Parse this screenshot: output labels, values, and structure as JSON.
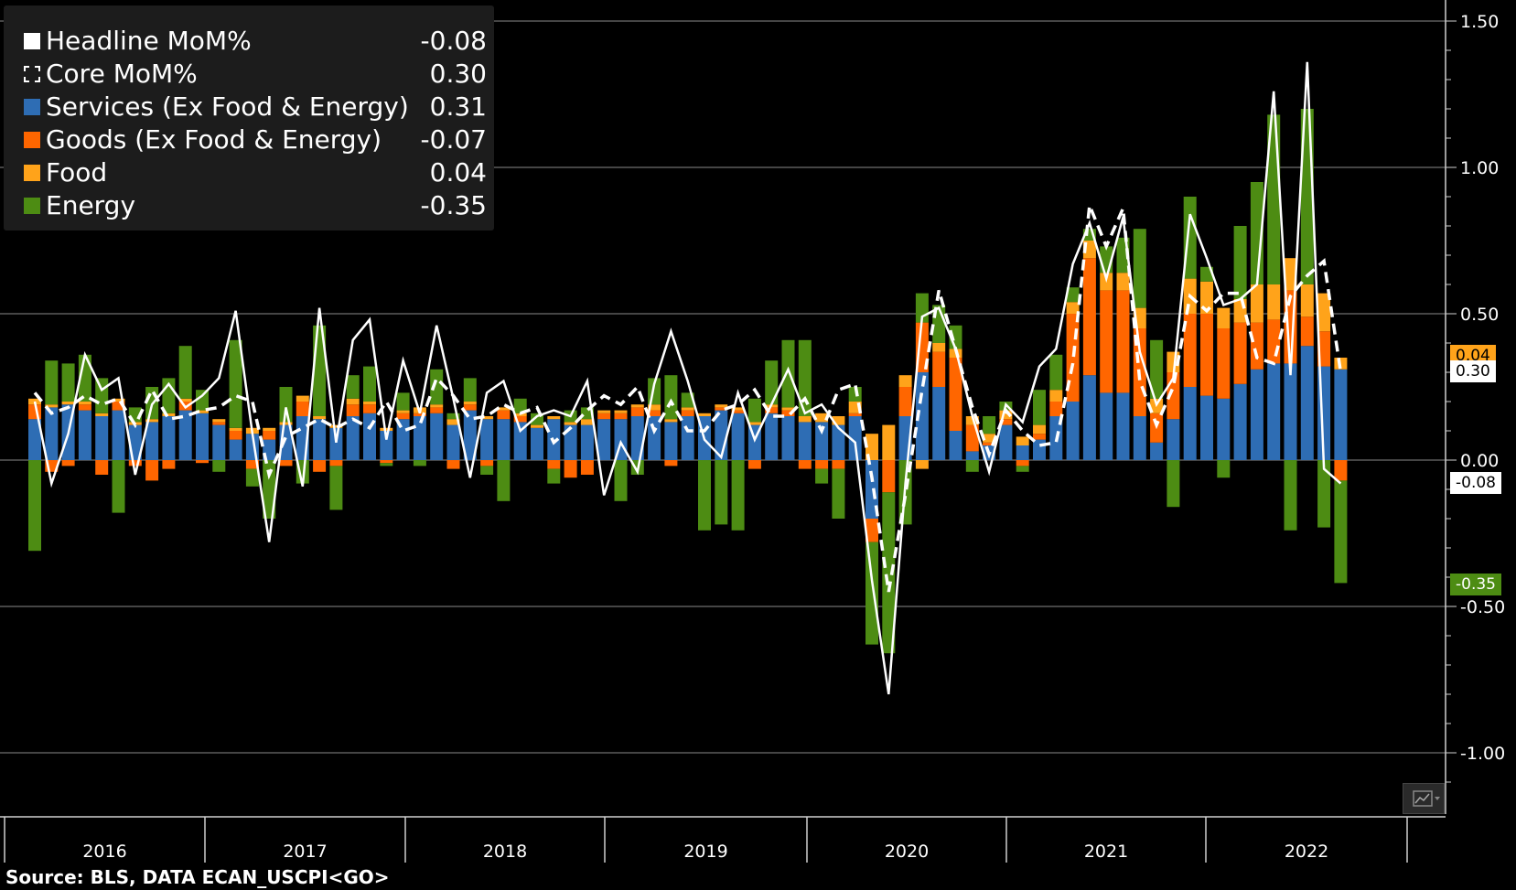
{
  "legend": {
    "items": [
      {
        "name": "Headline MoM%",
        "value": "-0.08",
        "color": "#ffffff",
        "style": "solid"
      },
      {
        "name": "Core MoM%",
        "value": "0.30",
        "color": "#ffffff",
        "style": "dashed"
      },
      {
        "name": "Services (Ex Food & Energy)",
        "value": "0.31",
        "color": "#2e6db4",
        "style": "solid"
      },
      {
        "name": "Goods (Ex Food & Energy)",
        "value": "-0.07",
        "color": "#ff6600",
        "style": "solid"
      },
      {
        "name": "Food",
        "value": "0.04",
        "color": "#ffa31a",
        "style": "solid"
      },
      {
        "name": "Energy",
        "value": "-0.35",
        "color": "#4d8c13",
        "style": "solid"
      }
    ]
  },
  "source": "Source: BLS, DATA ECAN_USCPI<GO>",
  "last_value_tags": [
    {
      "label": "0.04",
      "color": "#ffa31a",
      "text_color": "#000000"
    },
    {
      "label": "0.30",
      "color": "#ffffff",
      "text_color": "#000000"
    },
    {
      "label": "-0.08",
      "color": "#ffffff",
      "text_color": "#000000"
    },
    {
      "label": "-0.35",
      "color": "#4d8c13",
      "text_color": "#ffffff"
    }
  ],
  "chart_data": {
    "type": "bar",
    "stacked": true,
    "overlay_lines": [
      "Headline MoM%",
      "Core MoM%"
    ],
    "ylim": [
      -1.15,
      1.5
    ],
    "yticks": [
      "1.50",
      "1.00",
      "0.50",
      "0.00",
      "-0.50",
      "-1.00"
    ],
    "ytick_values": [
      1.5,
      1.0,
      0.5,
      0.0,
      -0.5,
      -1.0
    ],
    "year_labels": [
      "2016",
      "2017",
      "2018",
      "2019",
      "2020",
      "2021",
      "2022"
    ],
    "months": [
      "2016-01",
      "2016-02",
      "2016-03",
      "2016-04",
      "2016-05",
      "2016-06",
      "2016-07",
      "2016-08",
      "2016-09",
      "2016-10",
      "2016-11",
      "2016-12",
      "2017-01",
      "2017-02",
      "2017-03",
      "2017-04",
      "2017-05",
      "2017-06",
      "2017-07",
      "2017-08",
      "2017-09",
      "2017-10",
      "2017-11",
      "2017-12",
      "2018-01",
      "2018-02",
      "2018-03",
      "2018-04",
      "2018-05",
      "2018-06",
      "2018-07",
      "2018-08",
      "2018-09",
      "2018-10",
      "2018-11",
      "2018-12",
      "2019-01",
      "2019-02",
      "2019-03",
      "2019-04",
      "2019-05",
      "2019-06",
      "2019-07",
      "2019-08",
      "2019-09",
      "2019-10",
      "2019-11",
      "2019-12",
      "2020-01",
      "2020-02",
      "2020-03",
      "2020-04",
      "2020-05",
      "2020-06",
      "2020-07",
      "2020-08",
      "2020-09",
      "2020-10",
      "2020-11",
      "2020-12",
      "2021-01",
      "2021-02",
      "2021-03",
      "2021-04",
      "2021-05",
      "2021-06",
      "2021-07",
      "2021-08",
      "2021-09",
      "2021-10",
      "2021-11",
      "2021-12",
      "2022-01",
      "2022-02",
      "2022-03",
      "2022-04",
      "2022-05",
      "2022-06",
      "2022-07"
    ],
    "series": [
      {
        "name": "Services (Ex Food & Energy)",
        "color": "#2e6db4",
        "values": [
          0.14,
          0.18,
          0.19,
          0.17,
          0.15,
          0.17,
          0.12,
          0.13,
          0.15,
          0.17,
          0.16,
          0.12,
          0.07,
          0.09,
          0.07,
          0.12,
          0.15,
          0.14,
          0.11,
          0.15,
          0.16,
          0.1,
          0.14,
          0.15,
          0.16,
          0.12,
          0.17,
          0.14,
          0.14,
          0.13,
          0.11,
          0.14,
          0.12,
          0.12,
          0.14,
          0.14,
          0.15,
          0.15,
          0.13,
          0.15,
          0.15,
          0.17,
          0.16,
          0.12,
          0.16,
          0.15,
          0.13,
          0.13,
          0.12,
          0.15,
          -0.2,
          0.0,
          0.15,
          0.3,
          0.25,
          0.1,
          0.03,
          0.05,
          0.12,
          0.05,
          0.07,
          0.15,
          0.2,
          0.29,
          0.23,
          0.23,
          0.15,
          0.06,
          0.14,
          0.25,
          0.22,
          0.21,
          0.26,
          0.31,
          0.33,
          0.33,
          0.39,
          0.32,
          0.31
        ]
      },
      {
        "name": "Goods (Ex Food & Energy)",
        "color": "#ff6600",
        "values": [
          0.05,
          -0.04,
          -0.02,
          0.02,
          -0.05,
          0.03,
          -0.02,
          -0.07,
          -0.03,
          0.03,
          -0.01,
          0.01,
          0.03,
          -0.03,
          0.03,
          -0.02,
          0.05,
          -0.04,
          -0.02,
          0.04,
          0.03,
          -0.01,
          0.02,
          0.01,
          0.02,
          -0.03,
          0.02,
          -0.02,
          0.03,
          0.02,
          0.0,
          -0.03,
          -0.06,
          -0.05,
          0.02,
          0.02,
          0.03,
          0.02,
          -0.02,
          0.02,
          0.0,
          0.01,
          0.01,
          -0.03,
          0.02,
          0.02,
          -0.03,
          -0.03,
          -0.03,
          0.01,
          -0.08,
          -0.11,
          0.1,
          0.17,
          0.12,
          0.25,
          0.09,
          0.01,
          0.02,
          -0.02,
          0.02,
          0.05,
          0.3,
          0.4,
          0.35,
          0.35,
          0.3,
          0.1,
          0.16,
          0.25,
          0.28,
          0.24,
          0.21,
          0.16,
          0.15,
          0.25,
          0.1,
          0.12,
          -0.07
        ]
      },
      {
        "name": "Food",
        "color": "#ffa31a",
        "values": [
          0.02,
          0.01,
          0.01,
          0.01,
          0.01,
          0.01,
          0.01,
          0.01,
          0.01,
          0.01,
          0.01,
          0.01,
          0.01,
          0.02,
          0.01,
          0.01,
          0.02,
          0.01,
          0.01,
          0.02,
          0.01,
          0.01,
          0.01,
          0.02,
          0.01,
          0.02,
          0.01,
          0.01,
          0.01,
          0.01,
          0.01,
          0.01,
          0.01,
          0.02,
          0.01,
          0.01,
          0.01,
          0.02,
          0.01,
          0.01,
          0.01,
          0.01,
          0.01,
          0.01,
          0.01,
          0.01,
          0.02,
          0.03,
          0.03,
          0.04,
          0.09,
          0.12,
          0.04,
          -0.03,
          0.03,
          0.03,
          0.03,
          0.03,
          0.03,
          0.03,
          0.03,
          0.04,
          0.04,
          0.06,
          0.06,
          0.06,
          0.07,
          0.05,
          0.07,
          0.12,
          0.11,
          0.07,
          0.08,
          0.13,
          0.12,
          0.11,
          0.11,
          0.13,
          0.04
        ]
      },
      {
        "name": "Energy",
        "color": "#4d8c13",
        "values": [
          -0.31,
          0.15,
          0.13,
          0.16,
          0.12,
          -0.18,
          0.05,
          0.11,
          0.12,
          0.18,
          0.07,
          -0.04,
          0.3,
          -0.06,
          -0.2,
          0.12,
          -0.08,
          0.31,
          -0.15,
          0.08,
          0.12,
          -0.01,
          0.06,
          -0.02,
          0.12,
          0.02,
          0.08,
          -0.03,
          -0.14,
          0.05,
          0.04,
          -0.05,
          0.04,
          0.04,
          0.0,
          -0.14,
          -0.05,
          0.09,
          0.15,
          0.05,
          -0.24,
          -0.22,
          -0.24,
          0.08,
          0.15,
          0.23,
          0.26,
          -0.05,
          -0.17,
          0.05,
          -0.35,
          -0.55,
          -0.22,
          0.1,
          0.13,
          0.08,
          -0.04,
          0.06,
          0.03,
          -0.02,
          0.12,
          0.12,
          0.05,
          0.04,
          0.09,
          0.12,
          0.27,
          0.2,
          -0.16,
          0.28,
          0.05,
          -0.06,
          0.25,
          0.35,
          0.58,
          -0.24,
          0.6,
          -0.23,
          -0.35
        ]
      }
    ],
    "headline": [
      0.2,
      -0.08,
      0.09,
      0.36,
      0.24,
      0.28,
      -0.05,
      0.19,
      0.26,
      0.18,
      0.22,
      0.28,
      0.51,
      0.09,
      -0.28,
      0.18,
      -0.09,
      0.52,
      0.06,
      0.41,
      0.48,
      0.07,
      0.34,
      0.16,
      0.46,
      0.21,
      -0.06,
      0.23,
      0.27,
      0.1,
      0.15,
      0.17,
      0.15,
      0.27,
      -0.12,
      0.06,
      -0.04,
      0.26,
      0.44,
      0.27,
      0.07,
      0.01,
      0.23,
      0.07,
      0.19,
      0.31,
      0.16,
      0.19,
      0.11,
      0.06,
      -0.41,
      -0.8,
      -0.08,
      0.49,
      0.52,
      0.38,
      0.15,
      -0.04,
      0.19,
      0.13,
      0.32,
      0.38,
      0.67,
      0.81,
      0.62,
      0.83,
      0.37,
      0.19,
      0.28,
      0.84,
      0.69,
      0.53,
      0.55,
      0.6,
      1.26,
      0.29,
      1.36,
      -0.03,
      -0.08
    ],
    "core": [
      0.23,
      0.16,
      0.18,
      0.22,
      0.19,
      0.21,
      0.12,
      0.24,
      0.14,
      0.15,
      0.17,
      0.18,
      0.22,
      0.2,
      -0.05,
      0.08,
      0.11,
      0.14,
      0.11,
      0.14,
      0.11,
      0.2,
      0.1,
      0.12,
      0.28,
      0.22,
      0.14,
      0.15,
      0.19,
      0.16,
      0.18,
      0.06,
      0.11,
      0.17,
      0.22,
      0.19,
      0.25,
      0.1,
      0.2,
      0.1,
      0.1,
      0.17,
      0.19,
      0.24,
      0.15,
      0.15,
      0.21,
      0.1,
      0.24,
      0.26,
      -0.06,
      -0.45,
      -0.12,
      0.24,
      0.58,
      0.38,
      0.18,
      0.02,
      0.17,
      0.1,
      0.05,
      0.06,
      0.33,
      0.87,
      0.73,
      0.86,
      0.27,
      0.12,
      0.25,
      0.56,
      0.51,
      0.57,
      0.57,
      0.35,
      0.33,
      0.56,
      0.63,
      0.68,
      0.3
    ]
  }
}
